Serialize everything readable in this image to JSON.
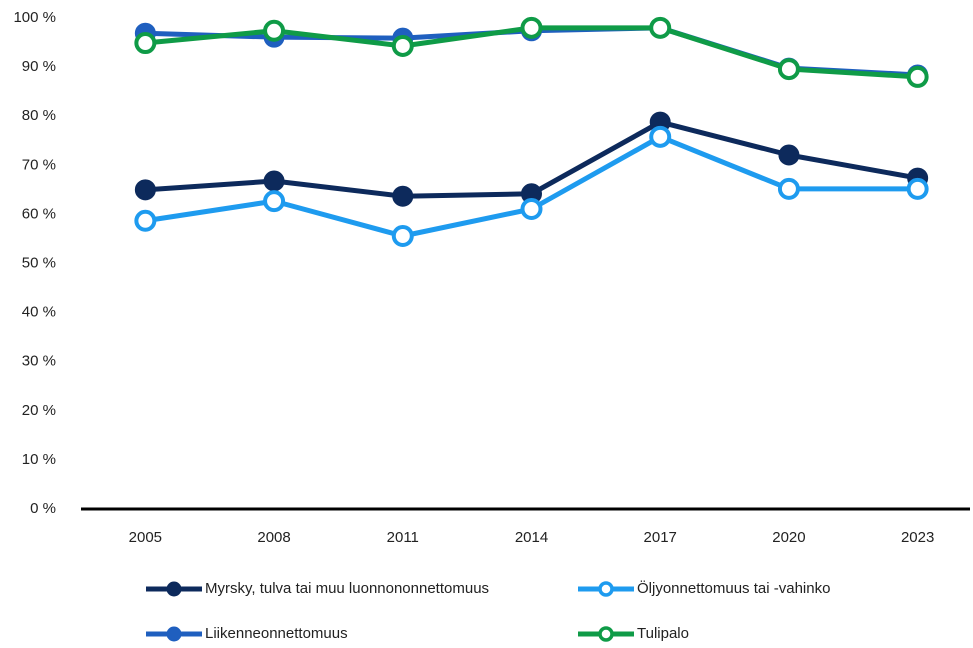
{
  "chart_data": {
    "type": "line",
    "categories": [
      "2005",
      "2008",
      "2011",
      "2014",
      "2017",
      "2020",
      "2023"
    ],
    "ylim": [
      0,
      100
    ],
    "yticks": [
      {
        "value": 0,
        "label": "0 %"
      },
      {
        "value": 10,
        "label": "10 %"
      },
      {
        "value": 20,
        "label": "20 %"
      },
      {
        "value": 30,
        "label": "30 %"
      },
      {
        "value": 40,
        "label": "40 %"
      },
      {
        "value": 50,
        "label": "50 %"
      },
      {
        "value": 60,
        "label": "60 %"
      },
      {
        "value": 70,
        "label": "70 %"
      },
      {
        "value": 80,
        "label": "80 %"
      },
      {
        "value": 90,
        "label": "90 %"
      },
      {
        "value": 100,
        "label": "100 %"
      }
    ],
    "grid": false,
    "legend": "bottom",
    "series": [
      {
        "name": "Myrsky, tulva tai muu luonnononnettomuus",
        "color": "#0d2a5c",
        "marker": "filled",
        "values": [
          65.0,
          66.8,
          63.7,
          64.2,
          78.8,
          72.1,
          67.4
        ]
      },
      {
        "name": "Öljyonnettomuus tai -vahinko",
        "color": "#1e9bef",
        "marker": "hollow",
        "values": [
          58.7,
          62.7,
          55.6,
          61.1,
          75.8,
          65.2,
          65.2
        ]
      },
      {
        "name": "Liikenneonnettomuus",
        "color": "#1f5fbf",
        "marker": "filled",
        "values": [
          96.9,
          96.1,
          95.9,
          97.4,
          98.0,
          89.8,
          88.4
        ]
      },
      {
        "name": "Tulipalo",
        "color": "#0f9b47",
        "marker": "hollow",
        "values": [
          94.9,
          97.4,
          94.3,
          98.0,
          98.0,
          89.6,
          88.0
        ]
      }
    ]
  }
}
